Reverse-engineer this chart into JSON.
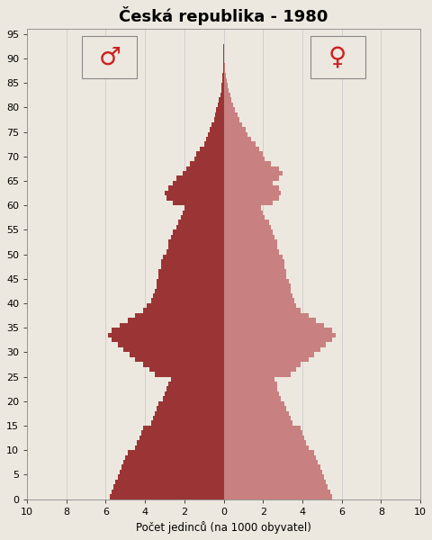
{
  "title": "Česká republika - 1980",
  "xlabel": "Počet jedinců (na 1000 obyvatel)",
  "bg_color": "#ede8df",
  "male_color": "#9b3535",
  "female_color": "#c98080",
  "symbol_color": "#cc2222",
  "ages": [
    0,
    1,
    2,
    3,
    4,
    5,
    6,
    7,
    8,
    9,
    10,
    11,
    12,
    13,
    14,
    15,
    16,
    17,
    18,
    19,
    20,
    21,
    22,
    23,
    24,
    25,
    26,
    27,
    28,
    29,
    30,
    31,
    32,
    33,
    34,
    35,
    36,
    37,
    38,
    39,
    40,
    41,
    42,
    43,
    44,
    45,
    46,
    47,
    48,
    49,
    50,
    51,
    52,
    53,
    54,
    55,
    56,
    57,
    58,
    59,
    60,
    61,
    62,
    63,
    64,
    65,
    66,
    67,
    68,
    69,
    70,
    71,
    72,
    73,
    74,
    75,
    76,
    77,
    78,
    79,
    80,
    81,
    82,
    83,
    84,
    85,
    86,
    87,
    88,
    89,
    90,
    91,
    92,
    93,
    94,
    95
  ],
  "male": [
    5.8,
    5.7,
    5.6,
    5.5,
    5.4,
    5.3,
    5.2,
    5.1,
    5.0,
    4.9,
    4.5,
    4.4,
    4.3,
    4.2,
    4.1,
    3.7,
    3.6,
    3.5,
    3.4,
    3.3,
    3.1,
    3.0,
    2.9,
    2.8,
    2.7,
    3.5,
    3.8,
    4.1,
    4.5,
    4.8,
    5.1,
    5.4,
    5.7,
    5.9,
    5.7,
    5.3,
    4.9,
    4.5,
    4.1,
    3.9,
    3.7,
    3.6,
    3.5,
    3.4,
    3.4,
    3.3,
    3.3,
    3.2,
    3.2,
    3.1,
    2.9,
    2.8,
    2.8,
    2.7,
    2.6,
    2.4,
    2.3,
    2.2,
    2.1,
    2.0,
    2.6,
    2.9,
    3.0,
    2.8,
    2.6,
    2.4,
    2.1,
    1.9,
    1.7,
    1.5,
    1.4,
    1.2,
    1.0,
    0.9,
    0.8,
    0.7,
    0.6,
    0.5,
    0.45,
    0.38,
    0.3,
    0.24,
    0.18,
    0.14,
    0.1,
    0.07,
    0.05,
    0.04,
    0.03,
    0.02,
    0.01,
    0.008,
    0.005,
    0.003,
    0.002,
    0.001
  ],
  "female": [
    5.5,
    5.4,
    5.3,
    5.2,
    5.1,
    5.0,
    4.9,
    4.8,
    4.7,
    4.6,
    4.3,
    4.2,
    4.1,
    4.0,
    3.9,
    3.5,
    3.4,
    3.3,
    3.2,
    3.1,
    2.9,
    2.8,
    2.7,
    2.7,
    2.6,
    3.4,
    3.7,
    3.9,
    4.3,
    4.6,
    4.9,
    5.2,
    5.5,
    5.7,
    5.5,
    5.1,
    4.7,
    4.3,
    3.9,
    3.7,
    3.6,
    3.5,
    3.4,
    3.4,
    3.3,
    3.2,
    3.2,
    3.1,
    3.1,
    3.0,
    2.8,
    2.7,
    2.7,
    2.6,
    2.5,
    2.4,
    2.3,
    2.1,
    2.0,
    1.9,
    2.5,
    2.8,
    2.9,
    2.8,
    2.5,
    2.8,
    3.0,
    2.8,
    2.4,
    2.1,
    2.0,
    1.8,
    1.6,
    1.4,
    1.2,
    1.1,
    0.95,
    0.8,
    0.7,
    0.58,
    0.48,
    0.4,
    0.32,
    0.26,
    0.2,
    0.15,
    0.11,
    0.08,
    0.06,
    0.04,
    0.03,
    0.02,
    0.01,
    0.007,
    0.005,
    0.002
  ],
  "ylim": [
    0,
    96
  ],
  "xlim": 10,
  "yticks": [
    0,
    5,
    10,
    15,
    20,
    25,
    30,
    35,
    40,
    45,
    50,
    55,
    60,
    65,
    70,
    75,
    80,
    85,
    90,
    95
  ],
  "xtick_vals": [
    -10,
    -8,
    -6,
    -4,
    -2,
    0,
    2,
    4,
    6,
    8,
    10
  ],
  "grid_color": "#cccccc",
  "grid_lines": [
    -8,
    -6,
    -4,
    -2,
    2,
    4,
    6,
    8
  ]
}
